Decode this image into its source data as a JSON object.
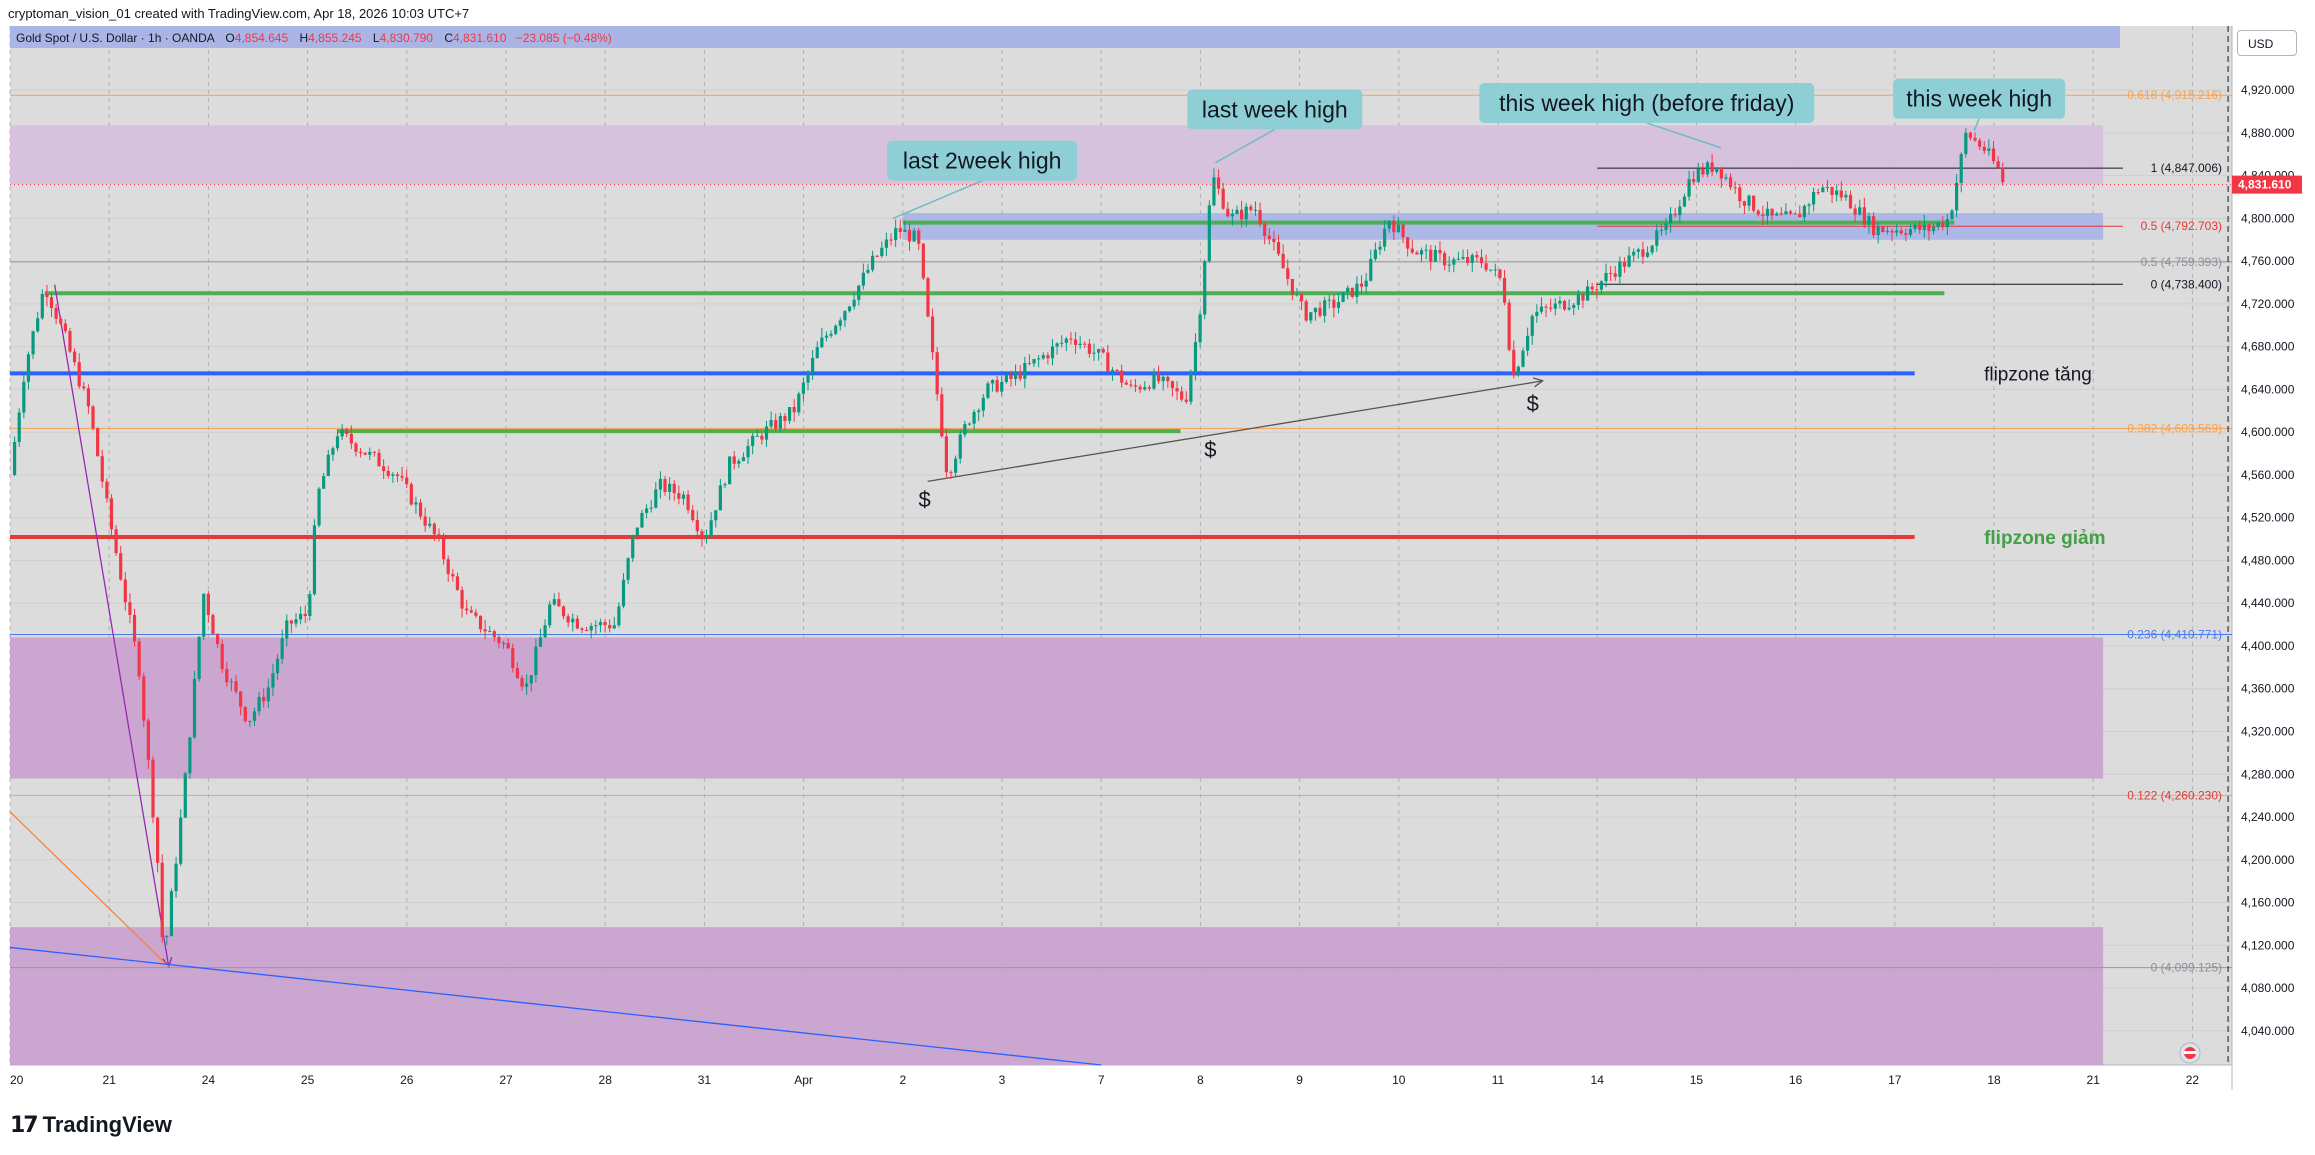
{
  "attribution": "cryptoman_vision_01 created with TradingView.com, Apr 18, 2026 10:03 UTC+7",
  "header": {
    "symbol": "Gold Spot / U.S. Dollar · 1h · OANDA",
    "o_label": "O",
    "o_value": "4,854.645",
    "h_label": "H",
    "h_value": "4,855.245",
    "l_label": "L",
    "l_value": "4,830.790",
    "c_label": "C",
    "c_value": "4,831.610",
    "change": "−23.085 (−0.48%)"
  },
  "currency_label": "USD",
  "footer_logo_text": "TradingView",
  "colors": {
    "candle_up": "#089981",
    "candle_down": "#f23645",
    "green_line": "#4caf50",
    "blue_line": "#2962ff",
    "red_line": "#e53935",
    "zone_purple": "#c8a2cf",
    "zone_light": "#d5c0db",
    "zone_blue": "#aab5e6",
    "callout_bg": "#8ecfd6"
  },
  "chart_data": {
    "type": "candlestick",
    "price_axis": {
      "ylim": [
        4008,
        4980
      ],
      "tick_labels": [
        "4,920.000",
        "4,880.000",
        "4,840.000",
        "4,800.000",
        "4,760.000",
        "4,720.000",
        "4,680.000",
        "4,640.000",
        "4,600.000",
        "4,560.000",
        "4,520.000",
        "4,480.000",
        "4,440.000",
        "4,400.000",
        "4,360.000",
        "4,320.000",
        "4,280.000",
        "4,240.000",
        "4,200.000",
        "4,160.000",
        "4,120.000",
        "4,080.000",
        "4,040.000"
      ],
      "tick_values": [
        4920,
        4880,
        4840,
        4800,
        4760,
        4720,
        4680,
        4640,
        4600,
        4560,
        4520,
        4480,
        4440,
        4400,
        4360,
        4320,
        4280,
        4240,
        4200,
        4160,
        4120,
        4080,
        4040
      ],
      "last_price_label": "4,831.610",
      "last_price": 4831.61
    },
    "time_axis": {
      "labels": [
        "20",
        "21",
        "24",
        "25",
        "26",
        "27",
        "28",
        "31",
        "Apr",
        "2",
        "3",
        "7",
        "8",
        "9",
        "10",
        "11",
        "14",
        "15",
        "16",
        "17",
        "18",
        "21",
        "22"
      ],
      "positions": [
        0,
        1,
        2,
        3,
        4,
        5,
        6,
        7,
        8,
        9,
        10,
        11,
        12,
        13,
        14,
        15,
        16,
        17,
        18,
        19,
        20,
        21,
        22
      ]
    },
    "price_path": [
      [
        0,
        4560
      ],
      [
        0.15,
        4660
      ],
      [
        0.35,
        4738
      ],
      [
        0.55,
        4690
      ],
      [
        0.8,
        4620
      ],
      [
        1.0,
        4520
      ],
      [
        1.3,
        4380
      ],
      [
        1.48,
        4210
      ],
      [
        1.55,
        4105
      ],
      [
        1.75,
        4260
      ],
      [
        1.95,
        4450
      ],
      [
        2.15,
        4380
      ],
      [
        2.4,
        4330
      ],
      [
        2.6,
        4360
      ],
      [
        2.8,
        4420
      ],
      [
        3.0,
        4430
      ],
      [
        3.1,
        4540
      ],
      [
        3.3,
        4600
      ],
      [
        3.6,
        4580
      ],
      [
        3.9,
        4560
      ],
      [
        4.3,
        4500
      ],
      [
        4.6,
        4430
      ],
      [
        5.0,
        4400
      ],
      [
        5.2,
        4360
      ],
      [
        5.45,
        4440
      ],
      [
        5.75,
        4420
      ],
      [
        6.1,
        4420
      ],
      [
        6.3,
        4510
      ],
      [
        6.55,
        4550
      ],
      [
        6.8,
        4540
      ],
      [
        7.0,
        4500
      ],
      [
        7.25,
        4570
      ],
      [
        7.6,
        4600
      ],
      [
        7.9,
        4620
      ],
      [
        8.15,
        4680
      ],
      [
        8.45,
        4720
      ],
      [
        8.7,
        4760
      ],
      [
        8.95,
        4790
      ],
      [
        9.15,
        4780
      ],
      [
        9.3,
        4670
      ],
      [
        9.45,
        4560
      ],
      [
        9.65,
        4610
      ],
      [
        9.85,
        4640
      ],
      [
        10.1,
        4650
      ],
      [
        10.4,
        4670
      ],
      [
        10.7,
        4690
      ],
      [
        11.0,
        4670
      ],
      [
        11.3,
        4640
      ],
      [
        11.55,
        4650
      ],
      [
        11.85,
        4630
      ],
      [
        11.98,
        4700
      ],
      [
        12.12,
        4840
      ],
      [
        12.3,
        4800
      ],
      [
        12.55,
        4810
      ],
      [
        12.85,
        4750
      ],
      [
        13.05,
        4710
      ],
      [
        13.35,
        4720
      ],
      [
        13.65,
        4740
      ],
      [
        13.9,
        4800
      ],
      [
        14.15,
        4770
      ],
      [
        14.5,
        4760
      ],
      [
        14.85,
        4760
      ],
      [
        15.05,
        4740
      ],
      [
        15.15,
        4650
      ],
      [
        15.35,
        4710
      ],
      [
        15.65,
        4720
      ],
      [
        15.9,
        4730
      ],
      [
        16.15,
        4750
      ],
      [
        16.45,
        4770
      ],
      [
        16.7,
        4790
      ],
      [
        16.95,
        4840
      ],
      [
        17.2,
        4850
      ],
      [
        17.45,
        4820
      ],
      [
        17.75,
        4800
      ],
      [
        18.0,
        4800
      ],
      [
        18.25,
        4830
      ],
      [
        18.5,
        4820
      ],
      [
        18.8,
        4790
      ],
      [
        19.1,
        4790
      ],
      [
        19.35,
        4790
      ],
      [
        19.55,
        4800
      ],
      [
        19.72,
        4880
      ],
      [
        19.9,
        4865
      ],
      [
        20.05,
        4845
      ],
      [
        20.1,
        4831.61
      ]
    ],
    "horizontal_levels": [
      {
        "id": "green-upper",
        "price": 4796,
        "x_from": 9.0,
        "x_to": 19.6,
        "color": "#4caf50"
      },
      {
        "id": "green-mid",
        "price": 4730,
        "x_from": 0.35,
        "x_to": 19.5,
        "color": "#4caf50"
      },
      {
        "id": "green-lower",
        "price": 4601,
        "x_from": 3.3,
        "x_to": 11.8,
        "color": "#4caf50"
      },
      {
        "id": "flipzone-up",
        "price": 4655,
        "x_from": 0,
        "x_to": 19.2,
        "color": "#2962ff"
      },
      {
        "id": "flipzone-down",
        "price": 4502,
        "x_from": 0,
        "x_to": 19.2,
        "color": "#e53935"
      }
    ],
    "zones": [
      {
        "id": "zone-top",
        "price_from": 4832,
        "price_to": 4887,
        "x_from": 0,
        "x_to": 21.1,
        "color": "#d5c0db"
      },
      {
        "id": "zone-blue",
        "price_from": 4780,
        "price_to": 4805,
        "x_from": 9.0,
        "x_to": 21.1,
        "color": "#aab5e6"
      },
      {
        "id": "zone-middle",
        "price_from": 4276,
        "price_to": 4408,
        "x_from": 0,
        "x_to": 21.1,
        "color": "#c8a2cf"
      },
      {
        "id": "zone-bottom",
        "price_from": 4008,
        "price_to": 4137,
        "x_from": 0,
        "x_to": 21.1,
        "color": "#c8a2cf"
      }
    ],
    "fib_levels": [
      {
        "label": "0.618 (4,915.216)",
        "price": 4915.216,
        "color": "#f7a250",
        "line": "#f7a250",
        "x_from": 0,
        "x_to": 22.5
      },
      {
        "label": "1 (4,847.006)",
        "price": 4847.006,
        "color": "#131722",
        "line": "#131722",
        "x_from": 16.0,
        "x_to": 21.3
      },
      {
        "label": "0.5 (4,792.703)",
        "price": 4792.703,
        "color": "#e53935",
        "line": "#e53935",
        "x_from": 16.0,
        "x_to": 21.3
      },
      {
        "label": "0.5 (4,759.393)",
        "price": 4759.393,
        "color": "#8a8f99",
        "line": "#9598a1",
        "x_from": 0,
        "x_to": 22.5
      },
      {
        "label": "0 (4,738.400)",
        "price": 4738.4,
        "color": "#131722",
        "line": "#131722",
        "x_from": 16.0,
        "x_to": 21.3
      },
      {
        "label": "0.382 (4,603.569)",
        "price": 4603.569,
        "color": "#f7a250",
        "line": "#f7a250",
        "x_from": 0,
        "x_to": 22.5
      },
      {
        "label": "0.236 (4,410.771)",
        "price": 4410.771,
        "color": "#4a7cf0",
        "line": "#4a7cf0",
        "x_from": 0,
        "x_to": 22.5
      },
      {
        "label": "0.122 (4,260.230)",
        "price": 4260.23,
        "color": "#e53935",
        "line": "#ef9a9a",
        "x_from": 0,
        "x_to": 22.5
      },
      {
        "label": "0 (4,099.125)",
        "price": 4099.125,
        "color": "#8a8f99",
        "line": "#9598a1",
        "x_from": 0,
        "x_to": 22.5
      }
    ],
    "trendlines": [
      {
        "id": "trend-support",
        "from": [
          9.25,
          4554
        ],
        "to": [
          15.45,
          4648
        ],
        "color": "#555555",
        "arrow": true
      },
      {
        "id": "trend-purple",
        "from": [
          0.45,
          4738
        ],
        "to": [
          1.6,
          4100
        ],
        "color": "#9c27b0",
        "arrow": true
      },
      {
        "id": "trend-orange",
        "from": [
          0,
          4245
        ],
        "to": [
          1.6,
          4100
        ],
        "color": "#ff7f3f",
        "arrow": false
      },
      {
        "id": "trend-blue",
        "from": [
          0,
          4118
        ],
        "to": [
          11.0,
          4008
        ],
        "color": "#2962ff",
        "arrow": false
      }
    ],
    "annotations": [
      {
        "id": "last-2week-high",
        "text": "last 2week high",
        "x": 9.8,
        "price": 4854,
        "w": 190,
        "anchor": [
          8.9,
          4800
        ]
      },
      {
        "id": "last-week-high",
        "text": "last week high",
        "x": 12.75,
        "price": 4902,
        "w": 175,
        "anchor": [
          12.15,
          4852
        ]
      },
      {
        "id": "this-week-high-before-friday",
        "text": "this week high (before friday)",
        "x": 16.5,
        "price": 4908,
        "w": 335,
        "anchor": [
          17.25,
          4866
        ]
      },
      {
        "id": "this-week-high",
        "text": "this week high",
        "x": 19.85,
        "price": 4912,
        "w": 172,
        "anchor": [
          19.8,
          4882
        ]
      }
    ],
    "dollar_marks": [
      {
        "text": "$",
        "x": 9.22,
        "price": 4530
      },
      {
        "text": "$",
        "x": 12.1,
        "price": 4577
      },
      {
        "text": "$",
        "x": 15.35,
        "price": 4620
      }
    ],
    "zone_labels": [
      {
        "id": "flipzone-tang",
        "text": "flipzone tăng",
        "x": 19.9,
        "price": 4655,
        "color": "#131722"
      },
      {
        "id": "flipzone-giam",
        "text": "flipzone giảm",
        "x": 19.9,
        "price": 4502,
        "color": "#43a047"
      }
    ]
  }
}
